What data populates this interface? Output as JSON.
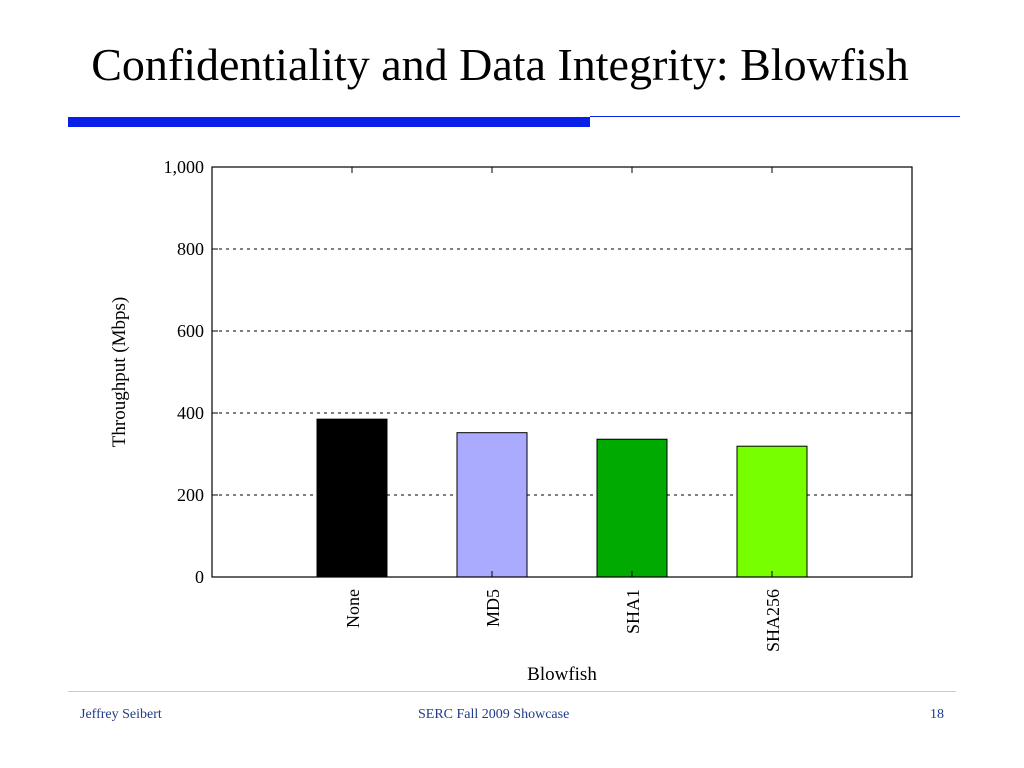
{
  "slide": {
    "title": "Confidentiality and Data Integrity: Blowfish",
    "accent_color": "#0a1fe8"
  },
  "footer": {
    "left": "Jeffrey Seibert",
    "center": "SERC Fall 2009 Showcase",
    "right": "18"
  },
  "chart_data": {
    "type": "bar",
    "categories": [
      "None",
      "MD5",
      "SHA1",
      "SHA256"
    ],
    "values": [
      385,
      352,
      336,
      319
    ],
    "colors": [
      "#000000",
      "#aaaaff",
      "#00aa00",
      "#77ff00"
    ],
    "xlabel": "Blowfish",
    "ylabel": "Throughput (Mbps)",
    "ylim": [
      0,
      1000
    ],
    "yticks": [
      0,
      200,
      400,
      600,
      800,
      1000
    ],
    "ytick_labels": [
      "0",
      "200",
      "400",
      "600",
      "800",
      "1,000"
    ],
    "grid": true,
    "grid_style": "dashed horizontal",
    "legend": "none"
  }
}
